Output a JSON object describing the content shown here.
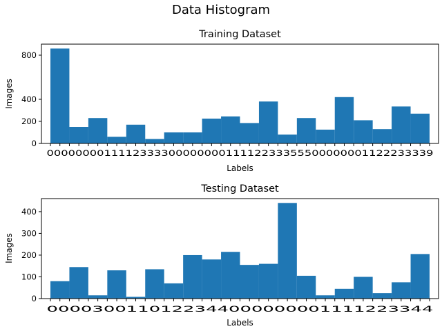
{
  "figure": {
    "suptitle": "Data Histogram",
    "bar_color": "#1f77b4"
  },
  "chart_data": [
    {
      "type": "bar",
      "title": "Training Dataset",
      "xlabel": "Labels",
      "ylabel": "Images",
      "ylim": [
        0,
        900
      ],
      "yticks": [
        0,
        200,
        400,
        800
      ],
      "ytick_labels": [
        "0",
        "200",
        "400",
        "800"
      ],
      "xlim": [
        0,
        20
      ],
      "xtick_text": "000000001111233330000000011112233355500000001122233339",
      "bin_edges": [
        0,
        1,
        2,
        3,
        4,
        5,
        6,
        7,
        8,
        9,
        10,
        11,
        12,
        13,
        14,
        15,
        16,
        17,
        18,
        19,
        20
      ],
      "values": [
        860,
        150,
        230,
        60,
        170,
        40,
        100,
        100,
        225,
        245,
        185,
        380,
        80,
        230,
        125,
        420,
        210,
        130,
        335,
        270
      ],
      "grid": false,
      "legend": "none"
    },
    {
      "type": "bar",
      "title": "Testing Dataset",
      "xlabel": "Labels",
      "ylabel": "Images",
      "ylim": [
        0,
        460
      ],
      "yticks": [
        0,
        100,
        200,
        300,
        400
      ],
      "ytick_labels": [
        "0",
        "100",
        "200",
        "300",
        "400"
      ],
      "xlim": [
        0,
        20
      ],
      "xtick_text": "0000300110122344000000001111223344",
      "bin_edges": [
        0,
        1,
        2,
        3,
        4,
        5,
        6,
        7,
        8,
        9,
        10,
        11,
        12,
        13,
        14,
        15,
        16,
        17,
        18,
        19,
        20
      ],
      "values": [
        80,
        145,
        15,
        130,
        8,
        135,
        70,
        200,
        180,
        215,
        155,
        160,
        440,
        105,
        15,
        45,
        100,
        25,
        75,
        205
      ],
      "grid": false,
      "legend": "none"
    }
  ]
}
